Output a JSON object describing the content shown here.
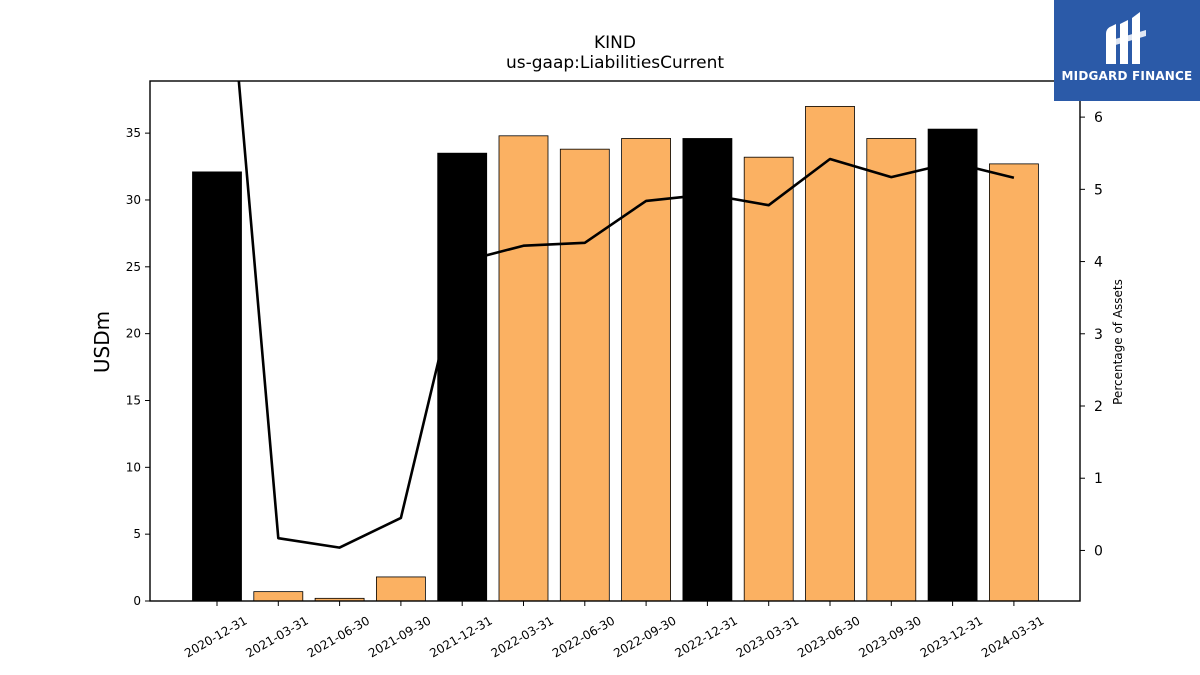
{
  "chart_data": {
    "type": "bar",
    "title": "KIND",
    "subtitle": "us-gaap:LiabilitiesCurrent",
    "ylabel": "USDm",
    "y2label": "Percentage of Assets",
    "categories": [
      "2020-12-31",
      "2021-03-31",
      "2021-06-30",
      "2021-09-30",
      "2021-12-31",
      "2022-03-31",
      "2022-06-30",
      "2022-09-30",
      "2022-12-31",
      "2023-03-31",
      "2023-06-30",
      "2023-09-30",
      "2023-12-31",
      "2024-03-31"
    ],
    "series": [
      {
        "values": [
          32.1,
          0.7,
          0.2,
          1.8,
          33.5,
          34.8,
          33.8,
          34.6,
          34.6,
          33.2,
          37.0,
          34.6,
          35.3,
          32.7
        ],
        "colors": [
          "#000000",
          "#fbb162",
          "#fbb162",
          "#fbb162",
          "#000000",
          "#fbb162",
          "#fbb162",
          "#fbb162",
          "#000000",
          "#fbb162",
          "#fbb162",
          "#fbb162",
          "#000000",
          "#fbb162"
        ]
      },
      {
        "axis": "right",
        "type": "line",
        "color": "#000000",
        "values": [
          10.0,
          0.17,
          0.04,
          0.45,
          4.0,
          4.22,
          4.26,
          4.84,
          4.93,
          4.78,
          5.42,
          5.17,
          5.37,
          5.16
        ]
      }
    ],
    "ylim": [
      0,
      38.9
    ],
    "yticks": [
      0,
      5,
      10,
      15,
      20,
      25,
      30,
      35
    ],
    "y2lim": [
      -0.7,
      6.5
    ],
    "y2ticks": [
      0,
      1,
      2,
      3,
      4,
      5,
      6
    ],
    "grid": false
  },
  "logo": {
    "text": "MIDGARD FINANCE",
    "background": "#2b5aa8"
  }
}
